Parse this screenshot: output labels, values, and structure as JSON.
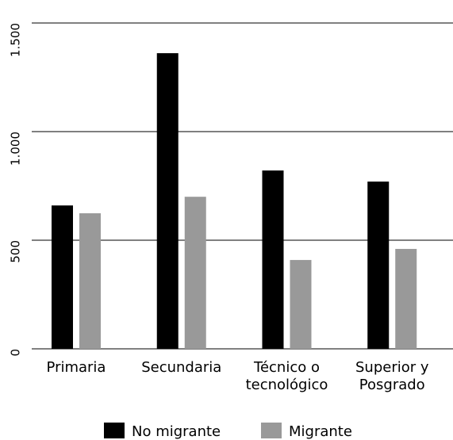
{
  "chart_data": {
    "type": "bar",
    "categories": [
      "Primaria",
      "Secundaria",
      "Técnico o tecnológico",
      "Superior y Posgrado"
    ],
    "series": [
      {
        "name": "No migrante",
        "color": "#000000",
        "values": [
          660,
          1361,
          821,
          770
        ]
      },
      {
        "name": "Migrante",
        "color": "#999999",
        "values": [
          624,
          700,
          409,
          460
        ]
      }
    ],
    "ylim": [
      0,
      1500
    ],
    "yticks": [
      0,
      500,
      {
        "value": 1000,
        "label": "1.000"
      },
      {
        "value": 1500,
        "label": "1.500"
      }
    ],
    "grid": true,
    "legend": "bottom"
  }
}
